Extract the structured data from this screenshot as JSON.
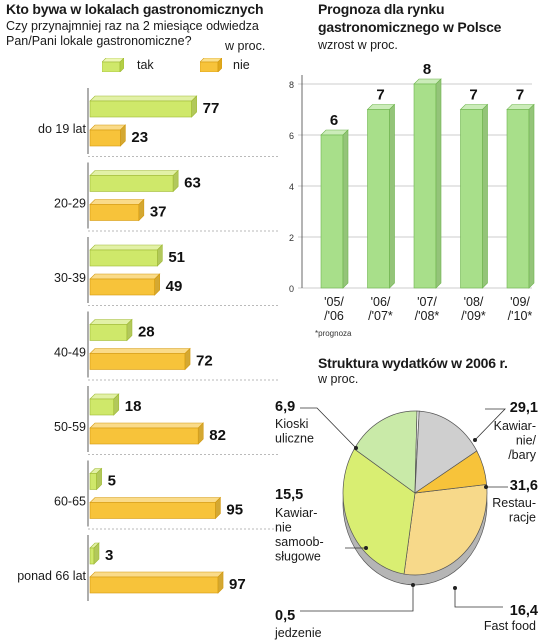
{
  "left": {
    "title": "Kto bywa w lokalach gastronomicznych",
    "question_line1": "Czy przynajmniej raz na 2 miesiące odwiedza",
    "question_line2": "Pan/Pani lokale gastronomiczne?",
    "unit": "w proc.",
    "legend": [
      {
        "label": "tak",
        "color": "#cfe86a"
      },
      {
        "label": "nie",
        "color": "#f7c33a"
      }
    ]
  },
  "forecast": {
    "title_line1": "Prognoza dla rynku",
    "title_line2": "gastronomicznego w Polsce",
    "subtitle": "wzrost w proc.",
    "footnote": "*prognoza"
  },
  "structure": {
    "title": "Struktura wydatków w 2006 r.",
    "subtitle": "w proc."
  },
  "chart_data": [
    {
      "type": "bar",
      "orientation": "horizontal",
      "categories": [
        "do 19 lat",
        "20-29",
        "30-39",
        "40-49",
        "50-59",
        "60-65",
        "ponad 66 lat"
      ],
      "series": [
        {
          "name": "tak",
          "values": [
            77,
            63,
            51,
            28,
            18,
            5,
            3
          ],
          "color": "#cfe86a"
        },
        {
          "name": "nie",
          "values": [
            23,
            37,
            49,
            72,
            82,
            95,
            97
          ],
          "color": "#f7c33a"
        }
      ],
      "xlim": [
        0,
        100
      ]
    },
    {
      "type": "bar",
      "categories": [
        "'05/\n/'06",
        "'06/\n/'07*",
        "'07/\n/'08*",
        "'08/\n/'09*",
        "'09/\n/'10*"
      ],
      "values": [
        6,
        7,
        8,
        7,
        7
      ],
      "value_labels": [
        "6",
        "7",
        "8",
        "7",
        "7"
      ],
      "yticks": [
        0,
        2,
        4,
        6,
        8
      ],
      "ylim": [
        0,
        8
      ],
      "color": "#a8df8a"
    },
    {
      "type": "pie",
      "slices": [
        {
          "label": "Kawiar-\nnie/\n/bary",
          "value_label": "29,1",
          "value": 29.1,
          "color": "#f7d98a"
        },
        {
          "label": "Restau-\nracje",
          "value_label": "31,6",
          "value": 31.6,
          "color": "#d9ee72"
        },
        {
          "label": "Fast food",
          "value_label": "16,4",
          "value": 16.4,
          "color": "#c9eaa8"
        },
        {
          "label": "jedzenie\nna wynos",
          "value_label": "0,5",
          "value": 0.5,
          "color": "#f2f2f2"
        },
        {
          "label": "Kawiar-\nnie\nsamoob-\nsługowe",
          "value_label": "15,5",
          "value": 15.5,
          "color": "#cfcfcf"
        },
        {
          "label": "Kioski\nuliczne",
          "value_label": "6,9",
          "value": 6.9,
          "color": "#f7c33a"
        }
      ]
    }
  ]
}
